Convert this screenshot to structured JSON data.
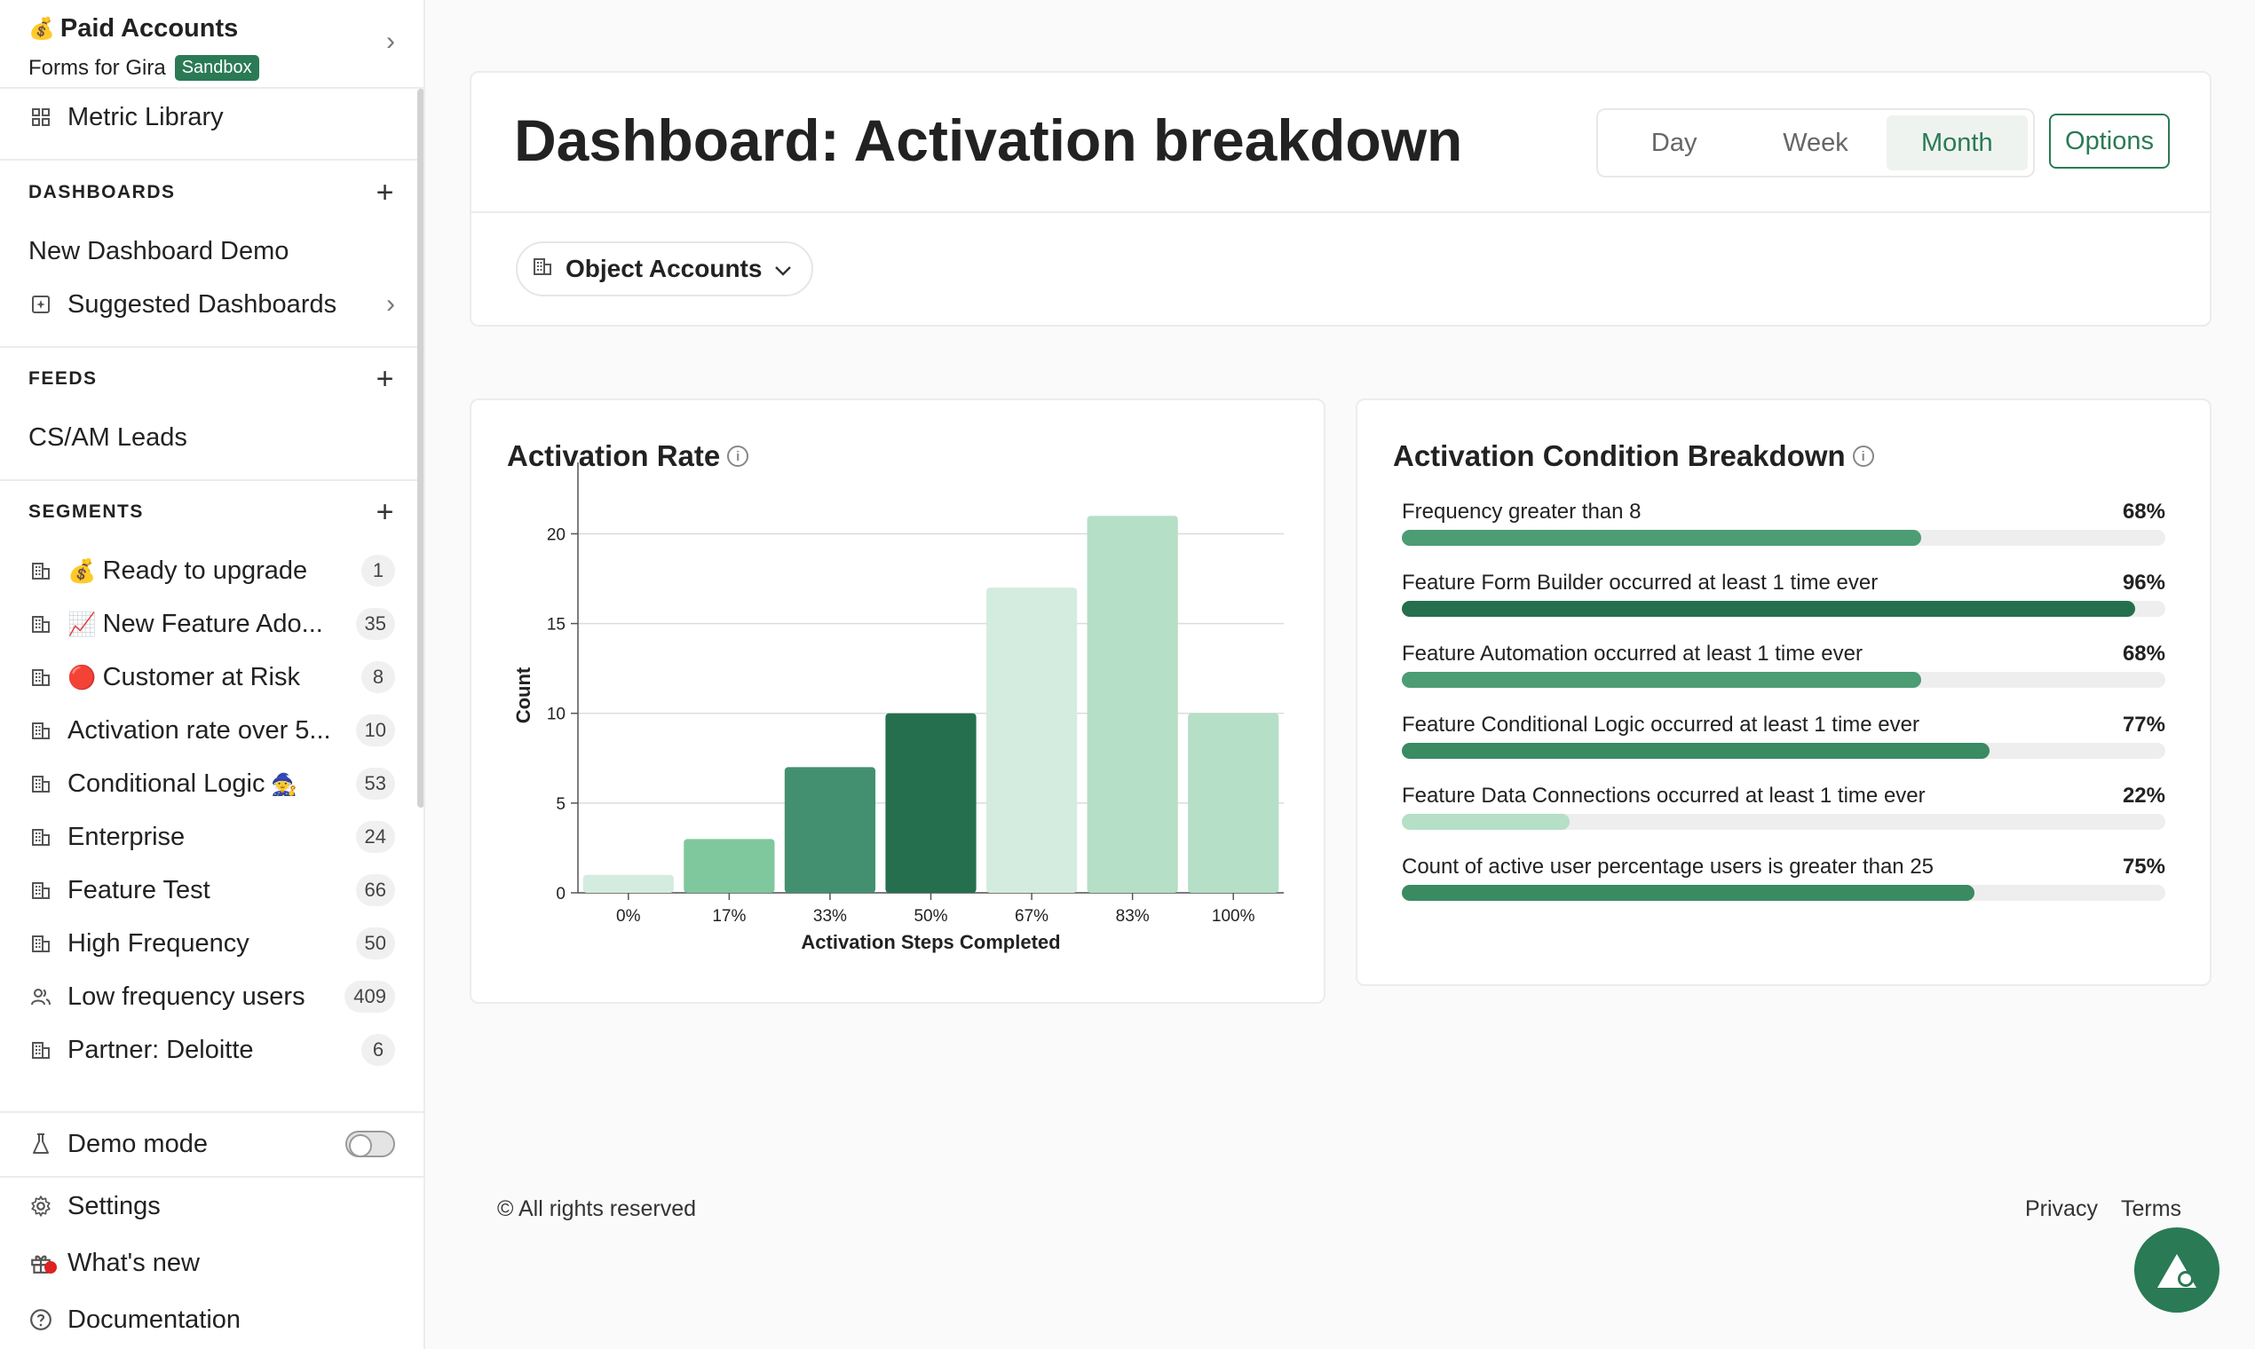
{
  "sidebar": {
    "account": {
      "title": "Paid Accounts",
      "subtitle": "Forms for Gira",
      "badge": "Sandbox",
      "emoji": "💰"
    },
    "metric_library": "Metric Library",
    "dashboards": {
      "header": "DASHBOARDS",
      "items": [
        "New Dashboard Demo",
        "Suggested Dashboards"
      ]
    },
    "feeds": {
      "header": "FEEDS",
      "items": [
        "CS/AM Leads"
      ]
    },
    "segments": {
      "header": "SEGMENTS",
      "items": [
        {
          "emoji": "💰",
          "label": "Ready to upgrade",
          "count": "1"
        },
        {
          "emoji": "📈",
          "label": "New Feature Ado...",
          "count": "35"
        },
        {
          "emoji": "🔴",
          "label": "Customer at Risk",
          "count": "8"
        },
        {
          "emoji": "",
          "label": "Activation rate over 5...",
          "count": "10"
        },
        {
          "emoji": "🧙",
          "label": "Conditional Logic",
          "count": "53"
        },
        {
          "emoji": "",
          "label": "Enterprise",
          "count": "24"
        },
        {
          "emoji": "",
          "label": "Feature Test",
          "count": "66"
        },
        {
          "emoji": "",
          "label": "High Frequency",
          "count": "50"
        },
        {
          "emoji": "",
          "label": "Low frequency users",
          "count": "409"
        },
        {
          "emoji": "",
          "label": "Partner: Deloitte",
          "count": "6"
        }
      ]
    },
    "bottom": {
      "demo_mode": "Demo mode",
      "settings": "Settings",
      "whats_new": "What's new",
      "documentation": "Documentation"
    }
  },
  "header": {
    "title": "Dashboard: Activation breakdown",
    "periods": [
      "Day",
      "Week",
      "Month"
    ],
    "active_period": "Month",
    "options_label": "Options",
    "filter_label": "Object Accounts"
  },
  "activation_rate": {
    "title": "Activation Rate"
  },
  "chart_data": {
    "type": "bar",
    "categories": [
      "0%",
      "17%",
      "33%",
      "50%",
      "67%",
      "83%",
      "100%"
    ],
    "values": [
      1,
      3,
      7,
      10,
      17,
      21,
      10
    ],
    "colors": [
      "#d4ecdf",
      "#7fc79c",
      "#439070",
      "#256f4e",
      "#d4ecdf",
      "#b5dfc6",
      "#b5dfc6"
    ],
    "xlabel": "Activation Steps Completed",
    "ylabel": "Count",
    "ylim": [
      0,
      22
    ],
    "yticks": [
      0,
      5,
      10,
      15,
      20
    ],
    "grid": true
  },
  "conditions": {
    "title": "Activation Condition Breakdown",
    "items": [
      {
        "label": "Frequency greater than 8",
        "pct_label": "68%",
        "value": 0.68,
        "color": "#4c9c74"
      },
      {
        "label": "Feature Form Builder occurred at least 1 time ever",
        "pct_label": "96%",
        "value": 0.96,
        "color": "#256f4e"
      },
      {
        "label": "Feature Automation occurred at least 1 time ever",
        "pct_label": "68%",
        "value": 0.68,
        "color": "#4c9c74"
      },
      {
        "label": "Feature Conditional Logic occurred at least 1 time ever",
        "pct_label": "77%",
        "value": 0.77,
        "color": "#3a8a62"
      },
      {
        "label": "Feature Data Connections occurred at least 1 time ever",
        "pct_label": "22%",
        "value": 0.22,
        "color": "#b5dfc6"
      },
      {
        "label": "Count of active user percentage users is greater than 25",
        "pct_label": "75%",
        "value": 0.75,
        "color": "#3a8a62"
      }
    ]
  },
  "footer": {
    "copyright": "© All rights reserved",
    "privacy": "Privacy",
    "terms": "Terms"
  }
}
